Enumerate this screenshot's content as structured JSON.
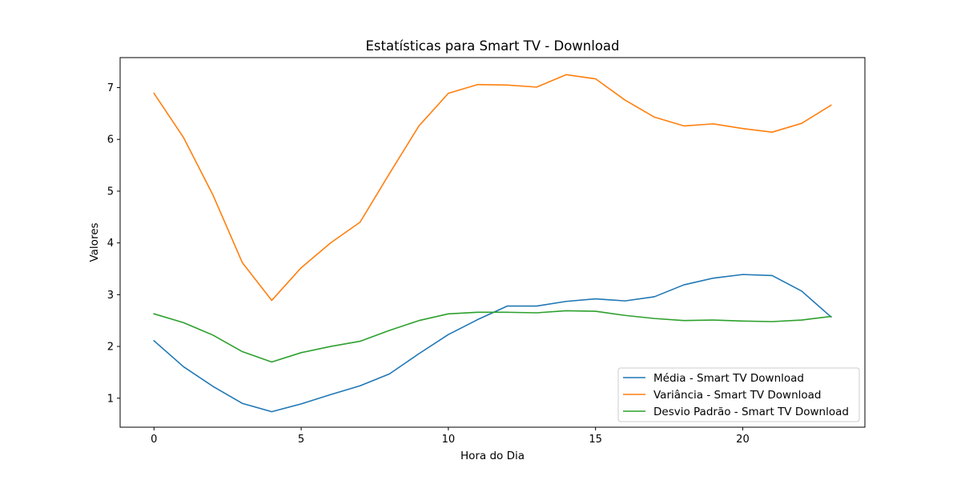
{
  "chart_data": {
    "type": "line",
    "title": "Estatísticas para Smart TV - Download",
    "xlabel": "Hora do Dia",
    "ylabel": "Valores",
    "xlim": [
      -1.15,
      24.15
    ],
    "ylim": [
      0.44,
      7.58
    ],
    "xticks": [
      0,
      5,
      10,
      15,
      20
    ],
    "yticks": [
      1,
      2,
      3,
      4,
      5,
      6,
      7
    ],
    "grid": false,
    "legend_position": "lower-right",
    "x": [
      0,
      1,
      2,
      3,
      4,
      5,
      6,
      7,
      8,
      9,
      10,
      11,
      12,
      13,
      14,
      15,
      16,
      17,
      18,
      19,
      20,
      21,
      22,
      23
    ],
    "series": [
      {
        "name": "Média - Smart TV Download",
        "color": "#1f77b4",
        "values": [
          2.11,
          1.61,
          1.23,
          0.9,
          0.74,
          0.89,
          1.07,
          1.24,
          1.47,
          1.86,
          2.23,
          2.52,
          2.78,
          2.78,
          2.87,
          2.92,
          2.88,
          2.96,
          3.19,
          3.32,
          3.39,
          3.37,
          3.07,
          2.57
        ]
      },
      {
        "name": "Variância - Smart TV Download",
        "color": "#ff7f0e",
        "values": [
          6.89,
          6.04,
          4.93,
          3.62,
          2.89,
          3.52,
          4.0,
          4.4,
          5.34,
          6.26,
          6.89,
          7.06,
          7.05,
          7.01,
          7.25,
          7.17,
          6.76,
          6.43,
          6.26,
          6.3,
          6.21,
          6.14,
          6.31,
          6.66
        ]
      },
      {
        "name": "Desvio Padrão - Smart TV Download",
        "color": "#2ca02c",
        "values": [
          2.63,
          2.46,
          2.22,
          1.9,
          1.7,
          1.88,
          2.0,
          2.1,
          2.31,
          2.5,
          2.63,
          2.66,
          2.66,
          2.65,
          2.69,
          2.68,
          2.6,
          2.54,
          2.5,
          2.51,
          2.49,
          2.48,
          2.51,
          2.58
        ]
      }
    ]
  }
}
